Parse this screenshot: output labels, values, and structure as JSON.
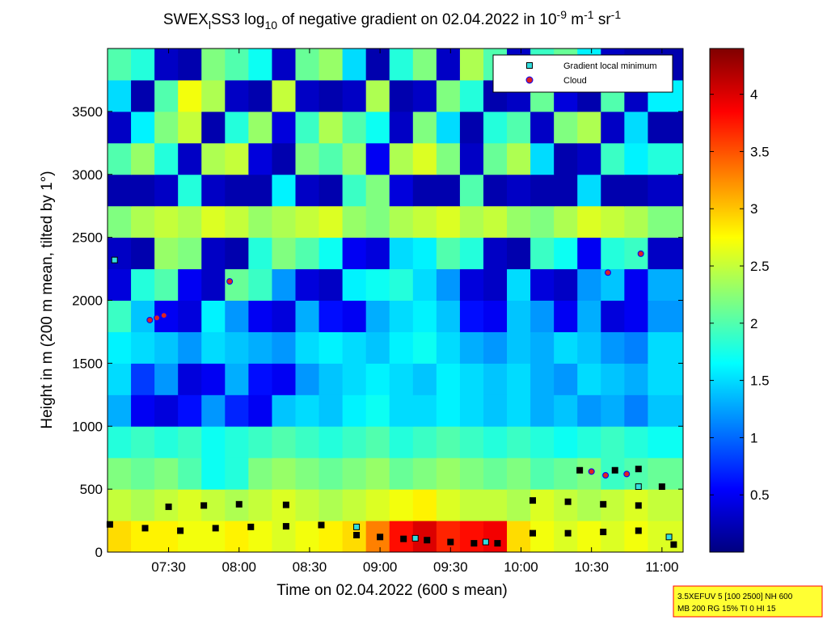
{
  "chart_data": {
    "type": "heatmap",
    "title": [
      "SWEX",
      "l",
      "SS3 log",
      "10",
      " of negative gradient on 02.04.2022 in 10",
      "-9",
      " m",
      "-1",
      " sr",
      "-1"
    ],
    "x_label": "Time on 02.04.2022 (600 s mean)",
    "y_label": "Height in m (200 m mean, tilted by 1°)",
    "xlim": [
      424,
      669
    ],
    "xticks": [
      {
        "value": 450,
        "label": "07:30"
      },
      {
        "value": 480,
        "label": "08:00"
      },
      {
        "value": 510,
        "label": "08:30"
      },
      {
        "value": 540,
        "label": "09:00"
      },
      {
        "value": 570,
        "label": "09:30"
      },
      {
        "value": 600,
        "label": "10:00"
      },
      {
        "value": 630,
        "label": "10:30"
      },
      {
        "value": 660,
        "label": "11:00"
      }
    ],
    "ylim": [
      0,
      4000
    ],
    "yticks": [
      0,
      500,
      1000,
      1500,
      2000,
      2500,
      3000,
      3500
    ],
    "clim": [
      0,
      4.4
    ],
    "cticks": [
      0.5,
      1,
      1.5,
      2,
      2.5,
      3,
      3.5,
      4
    ],
    "colormap": "jet",
    "x": [
      429,
      439,
      449,
      459,
      469,
      479,
      489,
      499,
      509,
      519,
      529,
      539,
      549,
      559,
      569,
      579,
      589,
      599,
      609,
      619,
      629,
      639,
      649,
      659
    ],
    "y": [
      125,
      375,
      625,
      875,
      1125,
      1375,
      1625,
      1875,
      2125,
      2375,
      2625,
      2875,
      3125,
      3375,
      3625,
      3875
    ],
    "z": [
      [
        2.9,
        2.8,
        2.8,
        2.7,
        2.7,
        2.8,
        2.7,
        2.6,
        2.7,
        2.8,
        2.9,
        3.3,
        3.8,
        4.0,
        3.7,
        3.8,
        3.9,
        2.9,
        2.7,
        2.6,
        2.7,
        2.6,
        2.7,
        2.6
      ],
      [
        2.5,
        2.4,
        2.5,
        2.6,
        2.5,
        2.4,
        2.5,
        2.6,
        2.5,
        2.4,
        2.5,
        2.6,
        2.7,
        2.8,
        2.6,
        2.5,
        2.5,
        2.4,
        2.6,
        2.5,
        2.4,
        2.5,
        2.6,
        2.5
      ],
      [
        2.2,
        2.1,
        2.2,
        2.0,
        1.7,
        1.8,
        2.2,
        2.3,
        2.2,
        2.1,
        2.2,
        2.3,
        2.1,
        2.2,
        2.3,
        2.2,
        2.1,
        2.2,
        2.0,
        2.1,
        2.2,
        1.9,
        2.0,
        2.1
      ],
      [
        1.8,
        1.9,
        1.8,
        1.9,
        1.7,
        1.8,
        1.9,
        2.0,
        1.9,
        1.8,
        1.9,
        2.0,
        1.8,
        1.9,
        2.0,
        1.9,
        1.8,
        1.9,
        1.8,
        1.7,
        1.8,
        1.9,
        1.8,
        1.7
      ],
      [
        1.3,
        0.5,
        0.4,
        0.6,
        1.2,
        0.7,
        0.5,
        1.4,
        1.5,
        1.4,
        1.6,
        1.7,
        1.5,
        1.5,
        1.6,
        1.5,
        1.4,
        1.5,
        1.3,
        1.4,
        1.2,
        1.3,
        1.1,
        1.4
      ],
      [
        1.5,
        0.8,
        1.2,
        0.4,
        0.5,
        1.3,
        0.6,
        0.5,
        1.2,
        1.4,
        1.5,
        1.6,
        1.5,
        1.4,
        1.6,
        1.5,
        1.4,
        1.5,
        1.3,
        1.2,
        1.5,
        1.4,
        1.3,
        1.5
      ],
      [
        1.6,
        1.5,
        1.4,
        1.2,
        1.5,
        1.4,
        1.3,
        1.2,
        1.5,
        1.6,
        1.5,
        1.4,
        1.6,
        1.7,
        1.5,
        1.3,
        1.2,
        1.4,
        1.3,
        1.5,
        1.4,
        1.2,
        1.1,
        1.5
      ],
      [
        1.9,
        1.4,
        0.5,
        0.4,
        1.6,
        1.2,
        0.5,
        0.4,
        1.3,
        0.6,
        0.5,
        1.3,
        1.5,
        1.6,
        1.4,
        0.6,
        0.5,
        1.4,
        1.2,
        0.5,
        1.3,
        0.4,
        0.5,
        1.2
      ],
      [
        0.4,
        1.8,
        2.0,
        0.5,
        0.3,
        2.1,
        1.9,
        1.2,
        0.4,
        0.3,
        1.6,
        1.7,
        1.8,
        1.5,
        1.2,
        0.4,
        0.3,
        1.5,
        0.4,
        0.3,
        1.2,
        1.4,
        0.5,
        1.3
      ],
      [
        0.3,
        0.2,
        2.3,
        2.2,
        0.3,
        0.2,
        1.8,
        2.2,
        2.0,
        1.7,
        0.5,
        0.4,
        1.5,
        1.6,
        2.0,
        1.8,
        0.3,
        0.2,
        1.9,
        1.7,
        0.5,
        1.8,
        1.9,
        0.3
      ],
      [
        2.2,
        2.4,
        2.5,
        2.4,
        2.6,
        2.5,
        2.3,
        2.4,
        2.5,
        2.6,
        2.3,
        2.2,
        2.4,
        2.5,
        2.6,
        2.4,
        2.5,
        2.3,
        2.2,
        2.4,
        2.6,
        2.5,
        2.4,
        2.2
      ],
      [
        0.2,
        0.2,
        0.3,
        1.8,
        0.3,
        0.2,
        0.2,
        1.6,
        0.3,
        0.2,
        1.9,
        2.2,
        0.4,
        0.2,
        0.2,
        2.0,
        0.2,
        0.3,
        0.2,
        0.2,
        1.5,
        0.2,
        0.2,
        0.3
      ],
      [
        2.0,
        2.3,
        1.8,
        0.3,
        2.4,
        2.5,
        0.4,
        0.2,
        2.2,
        2.0,
        2.3,
        0.5,
        2.4,
        2.6,
        2.2,
        0.3,
        2.1,
        2.4,
        1.5,
        0.2,
        0.3,
        1.9,
        1.6,
        1.8
      ],
      [
        0.3,
        1.6,
        2.2,
        2.5,
        0.2,
        1.8,
        2.3,
        0.4,
        1.9,
        2.4,
        2.0,
        1.7,
        0.3,
        2.2,
        1.5,
        0.2,
        1.8,
        2.0,
        0.3,
        2.2,
        2.4,
        0.3,
        1.5,
        0.2
      ],
      [
        1.5,
        0.2,
        2.0,
        2.7,
        2.4,
        0.3,
        0.2,
        2.5,
        0.3,
        0.2,
        0.3,
        2.4,
        0.2,
        0.3,
        2.2,
        1.8,
        0.2,
        0.3,
        2.1,
        0.4,
        0.2,
        2.0,
        0.3,
        1.6
      ],
      [
        2.0,
        1.8,
        0.3,
        0.2,
        2.2,
        2.0,
        1.7,
        0.3,
        2.1,
        2.3,
        1.5,
        0.2,
        1.8,
        2.2,
        0.3,
        2.4,
        2.0,
        0.3,
        1.9,
        2.1,
        1.6,
        0.3,
        0.2,
        0.2
      ]
    ],
    "series": [
      {
        "color": "#000000",
        "marker": "square",
        "x": [
          425,
          440,
          455,
          470,
          485,
          500,
          515,
          530,
          540,
          550,
          560,
          570,
          580,
          590,
          605,
          620,
          635,
          650,
          665,
          450,
          465,
          480,
          500,
          605,
          620,
          635,
          650,
          660,
          625,
          640,
          650
        ],
        "y": [
          220,
          190,
          170,
          190,
          200,
          205,
          215,
          135,
          120,
          105,
          95,
          80,
          70,
          70,
          150,
          150,
          160,
          170,
          60,
          360,
          370,
          380,
          375,
          410,
          400,
          380,
          370,
          520,
          650,
          650,
          660
        ]
      },
      {
        "name": "Gradient local minimum",
        "color": "#33dddd",
        "marker": "square",
        "x": [
          427,
          530,
          555,
          585,
          663,
          650
        ],
        "y": [
          2320,
          200,
          110,
          80,
          120,
          520
        ]
      },
      {
        "name": "Cloud",
        "color": "#dd2222",
        "marker": "circle",
        "x": [
          442,
          445,
          448,
          476,
          637,
          651,
          630,
          636,
          645
        ],
        "y": [
          1843,
          1860,
          1880,
          2150,
          2220,
          2370,
          640,
          610,
          620
        ]
      }
    ],
    "annotation": [
      "3.5XEFUV 5 [100 2500] NH 600",
      "MB 200 RG 15% TI 0 HI 15"
    ]
  }
}
